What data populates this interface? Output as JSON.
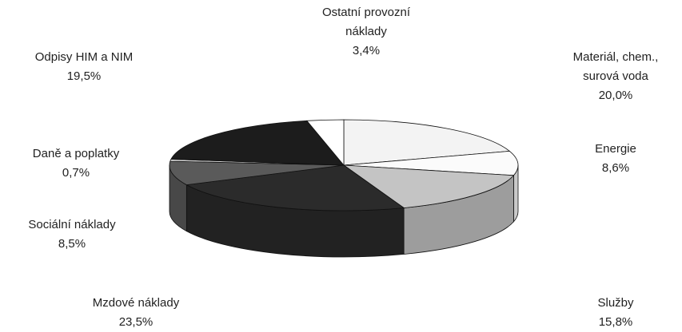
{
  "chart_data": {
    "type": "pie",
    "categories": [
      "Materiál, chem., surová voda",
      "Energie",
      "Služby",
      "Mzdové náklady",
      "Sociální náklady",
      "Daně a poplatky",
      "Odpisy HIM a NIM",
      "Ostatní provozní náklady"
    ],
    "values": [
      20.0,
      8.6,
      15.8,
      23.5,
      8.5,
      0.7,
      19.5,
      3.4
    ],
    "value_labels": [
      "20,0%",
      "8,6%",
      "15,8%",
      "23,5%",
      "8,5%",
      "0,7%",
      "19,5%",
      "3,4%"
    ],
    "colors": [
      "#f3f3f3",
      "#fbfbfb",
      "#c4c4c4",
      "#2b2b2b",
      "#5a5a5a",
      "#d8d8d8",
      "#1c1c1c",
      "#ffffff"
    ]
  }
}
